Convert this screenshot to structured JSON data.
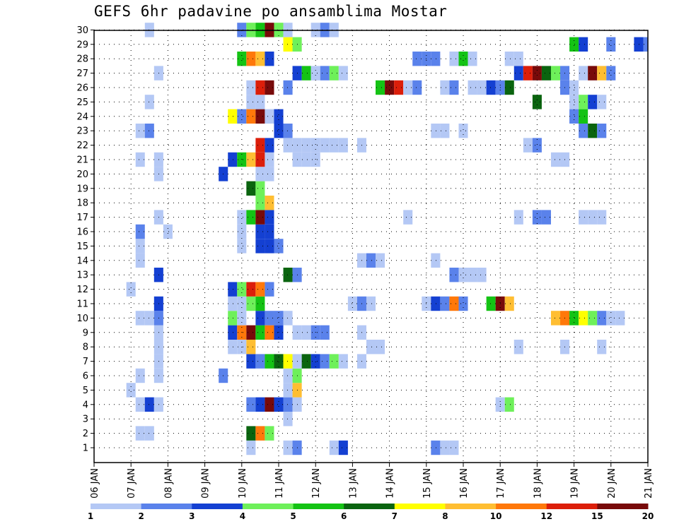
{
  "chart_data": {
    "type": "heatmap",
    "title": "GEFS 6hr padavine po ansamblima Mostar",
    "x": {
      "min": 0,
      "max": 60,
      "tick_labels": [
        "06 JAN",
        "07 JAN",
        "08 JAN",
        "09 JAN",
        "10 JAN",
        "11 JAN",
        "12 JAN",
        "13 JAN",
        "14 JAN",
        "15 JAN",
        "16 JAN",
        "17 JAN",
        "18 JAN",
        "19 JAN",
        "20 JAN",
        "21 JAN"
      ]
    },
    "y": {
      "min": 1,
      "max": 30,
      "tick_labels": [
        "1",
        "2",
        "3",
        "4",
        "5",
        "6",
        "7",
        "8",
        "9",
        "10",
        "11",
        "12",
        "13",
        "14",
        "15",
        "16",
        "17",
        "18",
        "19",
        "20",
        "21",
        "22",
        "23",
        "24",
        "25",
        "26",
        "27",
        "28",
        "29",
        "30"
      ]
    },
    "grid": "dotted",
    "colorbar": {
      "colors": [
        "#b4c8f5",
        "#5a82eb",
        "#1440d2",
        "#6ef05a",
        "#14c314",
        "#0a640f",
        "#ffff00",
        "#ffbe32",
        "#ff780a",
        "#dc1e0a",
        "#780a0a"
      ],
      "labels": [
        "1",
        "2",
        "3",
        "4",
        "5",
        "6",
        "7",
        "8",
        "10",
        "12",
        "15",
        "20"
      ]
    },
    "cells": [
      [
        1,
        17,
        1
      ],
      [
        1,
        21,
        1
      ],
      [
        1,
        22,
        2
      ],
      [
        1,
        26,
        1
      ],
      [
        1,
        27,
        3
      ],
      [
        1,
        37,
        2
      ],
      [
        1,
        38,
        1
      ],
      [
        1,
        39,
        1
      ],
      [
        2,
        5,
        1
      ],
      [
        2,
        6,
        1
      ],
      [
        2,
        17,
        6
      ],
      [
        2,
        18,
        9
      ],
      [
        2,
        19,
        4
      ],
      [
        3,
        21,
        1
      ],
      [
        4,
        5,
        1
      ],
      [
        4,
        6,
        3
      ],
      [
        4,
        7,
        1
      ],
      [
        4,
        17,
        2
      ],
      [
        4,
        18,
        3
      ],
      [
        4,
        19,
        11
      ],
      [
        4,
        20,
        3
      ],
      [
        4,
        21,
        2
      ],
      [
        4,
        22,
        1
      ],
      [
        4,
        44,
        1
      ],
      [
        4,
        45,
        4
      ],
      [
        5,
        4,
        1
      ],
      [
        5,
        21,
        1
      ],
      [
        5,
        22,
        8
      ],
      [
        6,
        5,
        1
      ],
      [
        6,
        7,
        1
      ],
      [
        6,
        14,
        2
      ],
      [
        6,
        21,
        1
      ],
      [
        6,
        22,
        4
      ],
      [
        7,
        7,
        1
      ],
      [
        7,
        17,
        3
      ],
      [
        7,
        18,
        2
      ],
      [
        7,
        19,
        5
      ],
      [
        7,
        20,
        6
      ],
      [
        7,
        21,
        7
      ],
      [
        7,
        22,
        1
      ],
      [
        7,
        23,
        6
      ],
      [
        7,
        24,
        3
      ],
      [
        7,
        25,
        2
      ],
      [
        7,
        26,
        4
      ],
      [
        7,
        27,
        1
      ],
      [
        7,
        29,
        1
      ],
      [
        8,
        7,
        1
      ],
      [
        8,
        15,
        1
      ],
      [
        8,
        16,
        1
      ],
      [
        8,
        17,
        8
      ],
      [
        8,
        30,
        1
      ],
      [
        8,
        31,
        1
      ],
      [
        8,
        46,
        1
      ],
      [
        8,
        51,
        1
      ],
      [
        8,
        55,
        1
      ],
      [
        9,
        7,
        1
      ],
      [
        9,
        15,
        3
      ],
      [
        9,
        16,
        9
      ],
      [
        9,
        17,
        11
      ],
      [
        9,
        18,
        5
      ],
      [
        9,
        19,
        9
      ],
      [
        9,
        20,
        3
      ],
      [
        9,
        22,
        1
      ],
      [
        9,
        23,
        1
      ],
      [
        9,
        24,
        2
      ],
      [
        9,
        25,
        2
      ],
      [
        9,
        29,
        1
      ],
      [
        10,
        5,
        1
      ],
      [
        10,
        6,
        1
      ],
      [
        10,
        7,
        2
      ],
      [
        10,
        15,
        4
      ],
      [
        10,
        16,
        1
      ],
      [
        10,
        18,
        3
      ],
      [
        10,
        19,
        2
      ],
      [
        10,
        20,
        2
      ],
      [
        10,
        21,
        1
      ],
      [
        10,
        50,
        8
      ],
      [
        10,
        51,
        9
      ],
      [
        10,
        52,
        5
      ],
      [
        10,
        53,
        7
      ],
      [
        10,
        54,
        4
      ],
      [
        10,
        55,
        2
      ],
      [
        10,
        56,
        1
      ],
      [
        10,
        57,
        1
      ],
      [
        11,
        7,
        3
      ],
      [
        11,
        15,
        1
      ],
      [
        11,
        16,
        1
      ],
      [
        11,
        17,
        4
      ],
      [
        11,
        18,
        5
      ],
      [
        11,
        28,
        1
      ],
      [
        11,
        29,
        2
      ],
      [
        11,
        30,
        1
      ],
      [
        11,
        36,
        1
      ],
      [
        11,
        37,
        3
      ],
      [
        11,
        38,
        2
      ],
      [
        11,
        39,
        9
      ],
      [
        11,
        40,
        2
      ],
      [
        11,
        43,
        5
      ],
      [
        11,
        44,
        11
      ],
      [
        11,
        45,
        8
      ],
      [
        12,
        4,
        1
      ],
      [
        12,
        15,
        3
      ],
      [
        12,
        16,
        4
      ],
      [
        12,
        17,
        10
      ],
      [
        12,
        18,
        9
      ],
      [
        12,
        19,
        2
      ],
      [
        13,
        7,
        3
      ],
      [
        13,
        21,
        6
      ],
      [
        13,
        22,
        2
      ],
      [
        13,
        39,
        2
      ],
      [
        13,
        40,
        1
      ],
      [
        13,
        41,
        1
      ],
      [
        13,
        42,
        1
      ],
      [
        14,
        5,
        1
      ],
      [
        14,
        29,
        1
      ],
      [
        14,
        30,
        2
      ],
      [
        14,
        31,
        1
      ],
      [
        14,
        37,
        1
      ],
      [
        15,
        5,
        1
      ],
      [
        15,
        16,
        1
      ],
      [
        15,
        18,
        3
      ],
      [
        15,
        19,
        3
      ],
      [
        15,
        20,
        2
      ],
      [
        16,
        5,
        2
      ],
      [
        16,
        8,
        1
      ],
      [
        16,
        16,
        1
      ],
      [
        16,
        18,
        3
      ],
      [
        16,
        19,
        3
      ],
      [
        17,
        7,
        1
      ],
      [
        17,
        16,
        1
      ],
      [
        17,
        17,
        5
      ],
      [
        17,
        18,
        11
      ],
      [
        17,
        19,
        3
      ],
      [
        17,
        34,
        1
      ],
      [
        17,
        46,
        1
      ],
      [
        17,
        48,
        2
      ],
      [
        17,
        49,
        2
      ],
      [
        17,
        53,
        1
      ],
      [
        17,
        54,
        1
      ],
      [
        17,
        55,
        1
      ],
      [
        18,
        18,
        4
      ],
      [
        18,
        19,
        8
      ],
      [
        19,
        17,
        6
      ],
      [
        19,
        18,
        4
      ],
      [
        20,
        7,
        1
      ],
      [
        20,
        14,
        3
      ],
      [
        20,
        18,
        1
      ],
      [
        20,
        19,
        1
      ],
      [
        21,
        5,
        1
      ],
      [
        21,
        7,
        1
      ],
      [
        21,
        15,
        3
      ],
      [
        21,
        16,
        5
      ],
      [
        21,
        17,
        8
      ],
      [
        21,
        18,
        10
      ],
      [
        21,
        19,
        1
      ],
      [
        21,
        22,
        1
      ],
      [
        21,
        23,
        1
      ],
      [
        21,
        24,
        1
      ],
      [
        21,
        50,
        1
      ],
      [
        21,
        51,
        1
      ],
      [
        22,
        18,
        10
      ],
      [
        22,
        19,
        3
      ],
      [
        22,
        21,
        1
      ],
      [
        22,
        22,
        1
      ],
      [
        22,
        23,
        1
      ],
      [
        22,
        24,
        1
      ],
      [
        22,
        25,
        1
      ],
      [
        22,
        26,
        1
      ],
      [
        22,
        27,
        1
      ],
      [
        22,
        29,
        1
      ],
      [
        22,
        47,
        1
      ],
      [
        22,
        48,
        2
      ],
      [
        23,
        5,
        1
      ],
      [
        23,
        6,
        2
      ],
      [
        23,
        20,
        3
      ],
      [
        23,
        21,
        2
      ],
      [
        23,
        37,
        1
      ],
      [
        23,
        38,
        1
      ],
      [
        23,
        40,
        1
      ],
      [
        23,
        53,
        2
      ],
      [
        23,
        54,
        6
      ],
      [
        23,
        55,
        2
      ],
      [
        24,
        15,
        7
      ],
      [
        24,
        16,
        2
      ],
      [
        24,
        17,
        9
      ],
      [
        24,
        18,
        11
      ],
      [
        24,
        19,
        1
      ],
      [
        24,
        20,
        3
      ],
      [
        24,
        52,
        2
      ],
      [
        24,
        53,
        5
      ],
      [
        25,
        6,
        1
      ],
      [
        25,
        17,
        1
      ],
      [
        25,
        18,
        1
      ],
      [
        25,
        48,
        6
      ],
      [
        25,
        52,
        1
      ],
      [
        25,
        53,
        4
      ],
      [
        25,
        54,
        3
      ],
      [
        25,
        55,
        1
      ],
      [
        26,
        17,
        1
      ],
      [
        26,
        18,
        10
      ],
      [
        26,
        19,
        11
      ],
      [
        26,
        21,
        2
      ],
      [
        26,
        31,
        5
      ],
      [
        26,
        32,
        11
      ],
      [
        26,
        33,
        10
      ],
      [
        26,
        34,
        1
      ],
      [
        26,
        35,
        2
      ],
      [
        26,
        38,
        1
      ],
      [
        26,
        39,
        2
      ],
      [
        26,
        41,
        1
      ],
      [
        26,
        42,
        1
      ],
      [
        26,
        43,
        3
      ],
      [
        26,
        44,
        2
      ],
      [
        26,
        45,
        6
      ],
      [
        26,
        51,
        2
      ],
      [
        26,
        52,
        1
      ],
      [
        27,
        7,
        1
      ],
      [
        27,
        22,
        3
      ],
      [
        27,
        23,
        5
      ],
      [
        27,
        24,
        1
      ],
      [
        27,
        25,
        2
      ],
      [
        27,
        26,
        4
      ],
      [
        27,
        27,
        1
      ],
      [
        27,
        46,
        3
      ],
      [
        27,
        47,
        10
      ],
      [
        27,
        48,
        11
      ],
      [
        27,
        49,
        6
      ],
      [
        27,
        50,
        4
      ],
      [
        27,
        51,
        2
      ],
      [
        27,
        53,
        1
      ],
      [
        27,
        54,
        11
      ],
      [
        27,
        55,
        8
      ],
      [
        27,
        56,
        2
      ],
      [
        28,
        16,
        5
      ],
      [
        28,
        17,
        9
      ],
      [
        28,
        18,
        8
      ],
      [
        28,
        19,
        3
      ],
      [
        28,
        35,
        2
      ],
      [
        28,
        36,
        2
      ],
      [
        28,
        37,
        2
      ],
      [
        28,
        39,
        1
      ],
      [
        28,
        40,
        5
      ],
      [
        28,
        41,
        1
      ],
      [
        28,
        45,
        1
      ],
      [
        28,
        46,
        1
      ],
      [
        29,
        21,
        7
      ],
      [
        29,
        22,
        4
      ],
      [
        29,
        52,
        5
      ],
      [
        29,
        53,
        3
      ],
      [
        29,
        56,
        2
      ],
      [
        29,
        59,
        3
      ],
      [
        29,
        60,
        2
      ],
      [
        30,
        6,
        1
      ],
      [
        30,
        16,
        2
      ],
      [
        30,
        17,
        4
      ],
      [
        30,
        18,
        5
      ],
      [
        30,
        19,
        11
      ],
      [
        30,
        20,
        4
      ],
      [
        30,
        21,
        1
      ],
      [
        30,
        24,
        1
      ],
      [
        30,
        25,
        2
      ],
      [
        30,
        26,
        1
      ]
    ]
  }
}
